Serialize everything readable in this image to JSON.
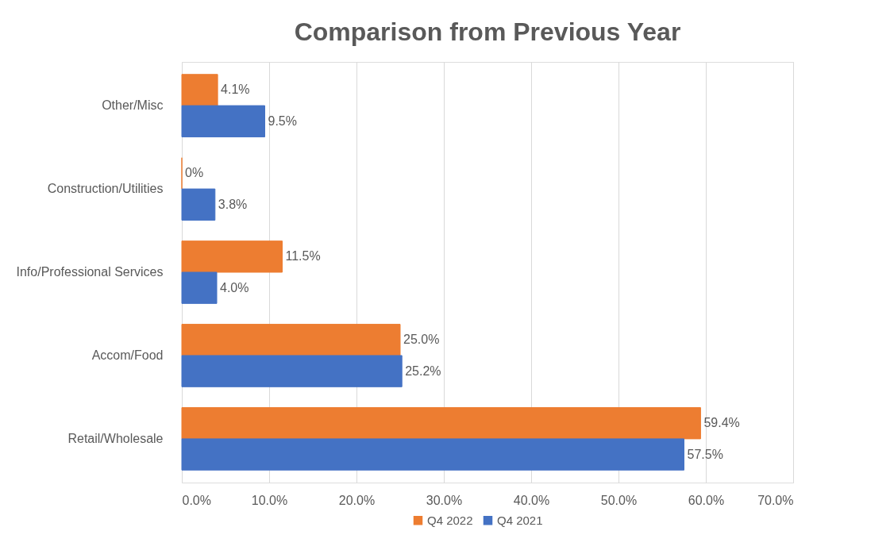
{
  "chart_data": {
    "type": "bar",
    "orientation": "horizontal",
    "title": "Comparison from Previous Year",
    "categories": [
      "Other/Misc",
      "Construction/Utilities",
      "Info/Professional Services",
      "Accom/Food",
      "Retail/Wholesale"
    ],
    "series": [
      {
        "name": "Q4 2022",
        "color": "#ed7d31",
        "values": [
          4.1,
          0,
          11.5,
          25.0,
          59.4
        ],
        "value_labels": [
          "4.1%",
          "0%",
          "11.5%",
          "25.0%",
          "59.4%"
        ]
      },
      {
        "name": "Q4 2021",
        "color": "#4472c4",
        "values": [
          9.5,
          3.8,
          4.0,
          25.2,
          57.5
        ],
        "value_labels": [
          "9.5%",
          "3.8%",
          "4.0%",
          "25.2%",
          "57.5%"
        ]
      }
    ],
    "xlim": [
      0,
      70
    ],
    "xticks": [
      {
        "value": 0,
        "label": "0.0%"
      },
      {
        "value": 10,
        "label": "10.0%"
      },
      {
        "value": 20,
        "label": "20.0%"
      },
      {
        "value": 30,
        "label": "30.0%"
      },
      {
        "value": 40,
        "label": "40.0%"
      },
      {
        "value": 50,
        "label": "50.0%"
      },
      {
        "value": 60,
        "label": "60.0%"
      },
      {
        "value": 70,
        "label": "70.0%"
      }
    ],
    "grid": "x",
    "legend": "bottom"
  }
}
